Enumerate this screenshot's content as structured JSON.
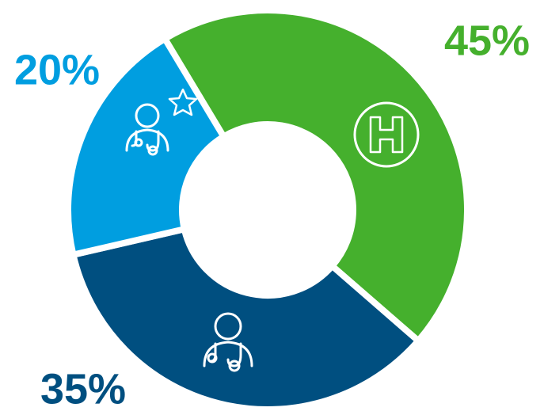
{
  "chart_data": {
    "type": "donut",
    "values": [
      45,
      35,
      20
    ],
    "value_labels": [
      "45%",
      "35%",
      "20%"
    ],
    "colors": [
      "#45b02d",
      "#004f80",
      "#009ee0"
    ]
  }
}
